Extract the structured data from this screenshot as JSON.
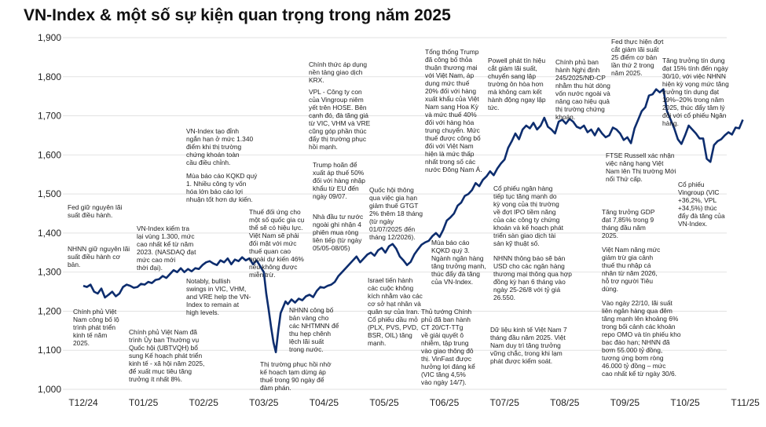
{
  "chart_data": {
    "type": "line",
    "title": "VN-Index & một số sự kiện quan trọng trong năm 2025",
    "xlabel": "",
    "ylabel": "",
    "ylim": [
      1000,
      1900
    ],
    "yticks": [
      "1,000",
      "1,100",
      "1,200",
      "1,300",
      "1,400",
      "1,500",
      "1,600",
      "1,700",
      "1,800",
      "1,900"
    ],
    "xticks": [
      "T12/24",
      "T01/25",
      "T02/25",
      "T03/25",
      "T04/25",
      "T05/25",
      "T06/25",
      "T07/25",
      "T08/25",
      "T09/25",
      "T10/25",
      "T11/25"
    ],
    "grid": "horizontal",
    "line_color": "#0d2d6e",
    "series": [
      {
        "x": [
          0.0,
          0.06,
          0.12,
          0.18,
          0.24,
          0.3,
          0.36,
          0.42,
          0.48,
          0.54,
          0.6,
          0.66,
          0.72,
          0.78,
          0.84,
          0.9,
          0.96,
          1.02,
          1.08,
          1.14,
          1.2,
          1.26,
          1.32,
          1.38,
          1.44,
          1.5,
          1.56,
          1.62,
          1.68,
          1.74,
          1.8,
          1.86,
          1.92,
          1.98,
          2.04,
          2.1,
          2.16,
          2.22,
          2.28,
          2.34,
          2.4,
          2.46,
          2.52,
          2.58,
          2.64,
          2.7,
          2.76,
          2.82,
          2.88,
          2.94,
          3.0,
          3.04,
          3.08,
          3.12,
          3.16,
          3.2,
          3.24,
          3.28,
          3.32,
          3.36,
          3.4,
          3.46,
          3.52,
          3.58,
          3.64,
          3.7,
          3.76,
          3.82,
          3.88,
          3.94,
          4.0,
          4.06,
          4.12,
          4.18,
          4.24,
          4.3,
          4.36,
          4.42,
          4.48,
          4.54,
          4.6,
          4.66,
          4.72,
          4.78,
          4.84,
          4.9,
          4.96,
          5.02,
          5.08,
          5.14,
          5.2,
          5.26,
          5.32,
          5.38,
          5.44,
          5.5,
          5.56,
          5.62,
          5.68,
          5.74,
          5.8,
          5.86,
          5.92,
          5.98,
          6.04,
          6.1,
          6.16,
          6.22,
          6.28,
          6.34,
          6.4,
          6.46,
          6.52,
          6.58,
          6.64,
          6.7,
          6.76,
          6.82,
          6.88,
          6.94,
          7.0,
          7.06,
          7.12,
          7.18,
          7.24,
          7.3,
          7.36,
          7.42,
          7.48,
          7.54,
          7.6,
          7.66,
          7.72,
          7.78,
          7.84,
          7.9,
          7.96,
          8.02,
          8.08,
          8.14,
          8.2,
          8.26,
          8.32,
          8.38,
          8.44,
          8.5,
          8.56,
          8.62,
          8.68,
          8.74,
          8.8,
          8.86,
          8.92,
          8.98,
          9.04,
          9.1,
          9.16,
          9.22,
          9.28,
          9.34,
          9.4,
          9.46,
          9.52,
          9.58,
          9.64,
          9.7,
          9.76,
          9.82,
          9.88,
          9.94,
          10.0,
          10.06,
          10.12,
          10.18,
          10.24,
          10.3,
          10.36,
          10.42,
          10.48,
          10.54,
          10.6,
          10.66,
          10.72,
          10.78,
          10.84,
          10.9,
          10.96
        ],
        "y": [
          1265,
          1262,
          1268,
          1250,
          1245,
          1258,
          1235,
          1242,
          1250,
          1238,
          1245,
          1262,
          1268,
          1265,
          1260,
          1262,
          1270,
          1268,
          1275,
          1272,
          1280,
          1282,
          1290,
          1285,
          1295,
          1305,
          1300,
          1310,
          1300,
          1308,
          1302,
          1310,
          1308,
          1318,
          1325,
          1328,
          1322,
          1318,
          1330,
          1325,
          1335,
          1320,
          1332,
          1328,
          1338,
          1330,
          1335,
          1320,
          1330,
          1315,
          1300,
          1245,
          1205,
          1160,
          1120,
          1095,
          1150,
          1195,
          1210,
          1225,
          1218,
          1230,
          1222,
          1232,
          1228,
          1238,
          1242,
          1236,
          1252,
          1262,
          1260,
          1265,
          1268,
          1275,
          1290,
          1300,
          1310,
          1320,
          1330,
          1340,
          1325,
          1335,
          1345,
          1350,
          1342,
          1356,
          1362,
          1350,
          1366,
          1372,
          1360,
          1340,
          1330,
          1318,
          1326,
          1345,
          1358,
          1370,
          1376,
          1380,
          1392,
          1400,
          1390,
          1408,
          1432,
          1440,
          1450,
          1470,
          1478,
          1495,
          1500,
          1510,
          1528,
          1520,
          1536,
          1545,
          1558,
          1548,
          1565,
          1578,
          1588,
          1618,
          1635,
          1655,
          1640,
          1665,
          1675,
          1668,
          1682,
          1665,
          1675,
          1695,
          1672,
          1665,
          1655,
          1685,
          1690,
          1680,
          1692,
          1685,
          1672,
          1668,
          1675,
          1658,
          1665,
          1650,
          1668,
          1655,
          1645,
          1650,
          1670,
          1665,
          1655,
          1638,
          1645,
          1630,
          1668,
          1690,
          1712,
          1722,
          1752,
          1755,
          1768,
          1760,
          1768,
          1712,
          1690,
          1668,
          1640,
          1628,
          1650,
          1675,
          1665,
          1655,
          1642,
          1642,
          1590,
          1582,
          1625,
          1635,
          1640,
          1650,
          1658,
          1652,
          1670,
          1668,
          1690
        ]
      }
    ]
  },
  "annotations": [
    {
      "id": "a1",
      "text": "Fed giữ nguyên lãi\nsuất điều hành."
    },
    {
      "id": "a2",
      "text": "NHNN giữ nguyên lãi\nsuất điều hành cơ\nbản."
    },
    {
      "id": "a3",
      "text": "Chính phủ Việt\nNam công bố lộ\ntrình phát triển\nkinh tế năm\n2025."
    },
    {
      "id": "a4",
      "text": "VN-Index kiểm tra\nlại vùng 1.300, mức\ncao nhất kể từ năm\n2023. (NASDAQ đạt\nmức cao mới\nthời đại)."
    },
    {
      "id": "a5",
      "text": "Chính phủ Việt Nam đã\ntrình Ủy ban Thường vụ\nQuốc hội (UBTVQH) bổ\nsung Kế hoạch phát triển\nkinh tế - xã hội năm 2025,\nđể xuất mục tiêu tăng\ntrưởng ít nhất 8%."
    },
    {
      "id": "a6",
      "text": "VN-Index tạo đỉnh\nngắn hạn ở mức 1.340\nđiểm khi thị trường\nchứng khoán toàn\ncầu điều chỉnh."
    },
    {
      "id": "a7",
      "text": "Mùa báo cáo KQKD quý\n1. Nhiều công ty vốn\nhóa lớn báo cáo lợi\nnhuận tốt hơn dự kiến."
    },
    {
      "id": "a8",
      "text": "Notably, bullish\nswings in VIC, VHM,\nand VRE help the VN-\nIndex to remain at\nhigh levels."
    },
    {
      "id": "a9",
      "text": "Thuế đối ứng cho\nmột số quốc gia cụ\nthể sẽ có hiệu lực.\nViệt Nam sẽ phải\nđối mặt với mức\nthuế quan cao\nngoài dự kiến 46%\nnếu không được\nmiễn trừ."
    },
    {
      "id": "a10",
      "text": "Thị trường phục hồi nhờ\nkế hoạch tạm dừng áp\nthuế trong 90 ngày để\nđàm phán."
    },
    {
      "id": "a11",
      "text": "Chính thức áp dụng\nnền tảng giao dịch\nKRX."
    },
    {
      "id": "a12",
      "text": "VPL - Công ty con\ncủa Vingroup niêm\nyết trên HOSE. Bên\ncạnh đó, đà tăng giá\ntừ VIC, VHM và VRE\ncũng góp phần thúc\nđẩy thị trường phục\nhồi mạnh."
    },
    {
      "id": "a13",
      "text": "Trump hoãn để\nxuất áp thuế 50%\nđối với hàng nhập\nkhẩu từ EU đến\nngày 09/07."
    },
    {
      "id": "a14",
      "text": "Nhà đầu tư nước\nngoài ghi nhận 4\nphiên mua ròng\nliên tiếp (từ ngày\n05/05-08/05)"
    },
    {
      "id": "a15",
      "text": "NHNN công bố\nbản vàng cho\ncác NHTMNN để\nthu hẹp chênh\nlệch lãi suất\ntrong nước."
    },
    {
      "id": "a16",
      "text": "Quốc hội thông\nqua việc gia hạn\ngiảm thuế GTGT\n2% thêm 18 tháng\n(từ ngày\n01/07/2025 đến\ntháng 12/2026)."
    },
    {
      "id": "a17",
      "text": "Israel tiến hành\ncác cuộc không\nkích nhằm vào các\ncơ sở hạt nhân và\nquân sự của Iran.\nCổ phiếu dầu mỏ\n(PLX, PVS, PVD,\nBSR, OIL) tăng\nmạnh."
    },
    {
      "id": "a18",
      "text": "Tổng thống Trump\nđã công bố thỏa\nthuận thương mại\nvới Việt Nam, áp\ndụng mức thuế\n20% đối với hàng\nxuất khẩu của Việt\nNam sang Hoa Kỳ\nvà mức thuế 40%\nđối với hàng hóa\ntrung chuyển. Mức\nthuế được công bố\nđối với Việt Nam\nhiện là mức thấp\nnhất trong số các\nnước Đông Nam Á."
    },
    {
      "id": "a19",
      "text": "Mùa báo cáo\nKQKD quý 3.\nNgành ngân hàng\ntăng trưởng mạnh,\nthúc đẩy đà tăng\ncủa VN-Index."
    },
    {
      "id": "a20",
      "text": "Thủ tướng Chính\nphủ đã ban hành\nCT 20/CT-TTg\nvề giải quyết ô\nnhiễm, tập trung\nvào giao thông đô\nthị. VinFast được\nhưởng lợi đáng kể\n(VIC tăng 4,5%\nvào ngày 14/7)."
    },
    {
      "id": "a21",
      "text": "Powell phát tín hiệu\ncắt giảm lãi suất,\nchuyển sang lập\ntrường ôn hòa hơn\nmà không cam kết\nhành động ngay lập\ntức."
    },
    {
      "id": "a22",
      "text": "Cổ phiếu ngân hàng\ntiếp tục tăng mạnh do\nkỳ vọng của thị trường\nvề đợt IPO tiềm năng\ncủa các công ty chứng\nkhoán và kế hoạch phát\ntriển sàn giao dịch tài\nsản kỹ thuật số."
    },
    {
      "id": "a23",
      "text": "NHNN thông báo sẽ bán\nUSD cho các ngân hàng\nthương mại thông qua hợp\nđồng kỳ hạn 6 tháng vào\nngày 25-26/8 với tỷ giá\n26.550."
    },
    {
      "id": "a24",
      "text": "Dữ liệu kinh tế Việt Nam 7\ntháng đầu năm 2025. Việt\nNam duy trì tăng trưởng\nvững chắc, trong khi lạm\nphát được kiểm soát."
    },
    {
      "id": "a25",
      "text": "Chính phủ ban\nhành Nghị định\n245/2025/NĐ-CP\nnhằm thu hút dòng\nvốn nước ngoài và\nnâng cao hiệu quả\nthị trường chứng\nkhoán."
    },
    {
      "id": "a26",
      "text": "Fed thực hiện đợt\ncắt giảm lãi suất\n25 điểm cơ bản\nlần thứ 2 trong\nnăm 2025."
    },
    {
      "id": "a27",
      "text": "Tăng trưởng tín dụng\nđạt 15% tính đến ngày\n30/10, với việc NHNN\nhiện kỳ vọng mức tăng\ntrưởng tín dụng đạt\n19%–20% trong năm\n2025, thúc đẩy tâm lý\nđối với cổ phiếu Ngân\nhàng."
    },
    {
      "id": "a28",
      "text": "FTSE Russell xác nhận\nviệc nâng hạng Việt\nNam lên Thị trường Mới\nnổi Thứ cấp."
    },
    {
      "id": "a29",
      "text": "Cổ phiếu\nVingroup (VIC\n+36,2%, VPL\n+34,5%) thúc\nđẩy đà tăng của\nVN-Index."
    },
    {
      "id": "a30",
      "text": "Tăng trưởng GDP\nđạt 7,85% trong 9\ntháng đầu năm\n2025."
    },
    {
      "id": "a31",
      "text": "Việt Nam nâng mức\ngiảm trừ gia cảnh\nthuế thu nhập cá\nnhân từ năm 2026,\nhỗ trợ người Tiêu\ndùng."
    },
    {
      "id": "a32",
      "text": "Vào ngày 22/10, lãi suất\nliên ngân hàng qua đêm\ntăng mạnh lên khoảng 6%\ntrong bối cảnh các khoản\nrepo OMO và tín phiếu kho\nbạc đáo hạn; NHNN đã\nbơm 55.000 tỷ đồng,\ntương ứng bơm ròng\n46.000 tỷ đồng – mức\ncao nhất kể từ ngày 30/6."
    }
  ]
}
